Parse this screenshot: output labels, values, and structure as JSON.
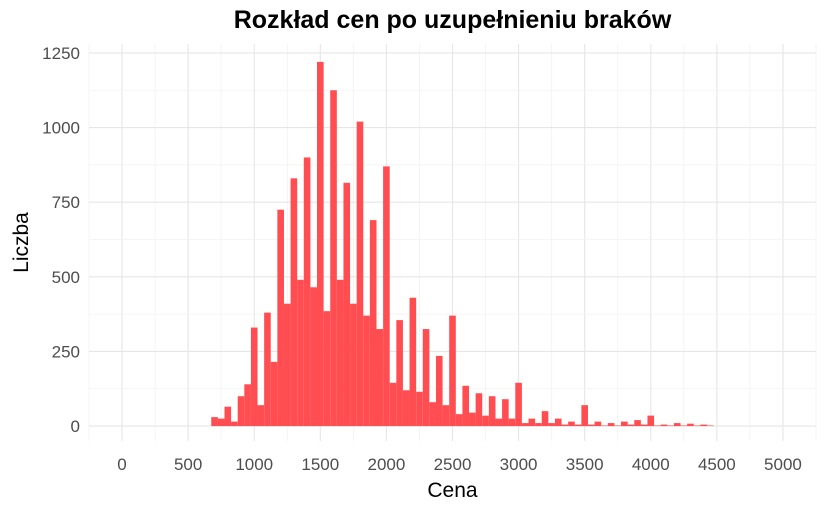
{
  "chart_data": {
    "type": "bar",
    "title": "Rozkład cen po uzupełnieniu braków",
    "xlabel": "Cena",
    "ylabel": "Liczba",
    "xlim": [
      -250,
      5250
    ],
    "ylim": [
      -50,
      1280
    ],
    "x_ticks": [
      0,
      500,
      1000,
      1500,
      2000,
      2500,
      3000,
      3500,
      4000,
      4500,
      5000
    ],
    "y_ticks": [
      0,
      250,
      500,
      750,
      1000,
      1250
    ],
    "bin_width": 50,
    "bar_color": "#ff4d52",
    "grid": true,
    "x": [
      700,
      750,
      800,
      850,
      900,
      950,
      1000,
      1050,
      1100,
      1150,
      1200,
      1250,
      1300,
      1350,
      1400,
      1450,
      1500,
      1550,
      1600,
      1650,
      1700,
      1750,
      1800,
      1850,
      1900,
      1950,
      2000,
      2050,
      2100,
      2150,
      2200,
      2250,
      2300,
      2350,
      2400,
      2450,
      2500,
      2550,
      2600,
      2650,
      2700,
      2750,
      2800,
      2850,
      2900,
      2950,
      3000,
      3050,
      3100,
      3150,
      3200,
      3250,
      3300,
      3350,
      3400,
      3450,
      3500,
      3550,
      3600,
      3650,
      3700,
      3750,
      3800,
      3850,
      3900,
      3950,
      4000,
      4050,
      4100,
      4150,
      4200,
      4250,
      4300,
      4350,
      4400,
      4450
    ],
    "values": [
      30,
      25,
      65,
      15,
      100,
      140,
      330,
      70,
      380,
      215,
      725,
      410,
      830,
      490,
      900,
      465,
      1220,
      385,
      1125,
      490,
      815,
      410,
      1020,
      370,
      690,
      325,
      870,
      145,
      355,
      120,
      430,
      115,
      325,
      80,
      235,
      70,
      370,
      40,
      135,
      45,
      110,
      35,
      100,
      25,
      90,
      25,
      145,
      10,
      25,
      10,
      50,
      10,
      25,
      5,
      15,
      5,
      70,
      5,
      15,
      2,
      10,
      2,
      15,
      5,
      20,
      5,
      35,
      2,
      5,
      2,
      10,
      2,
      8,
      2,
      5,
      2
    ]
  }
}
